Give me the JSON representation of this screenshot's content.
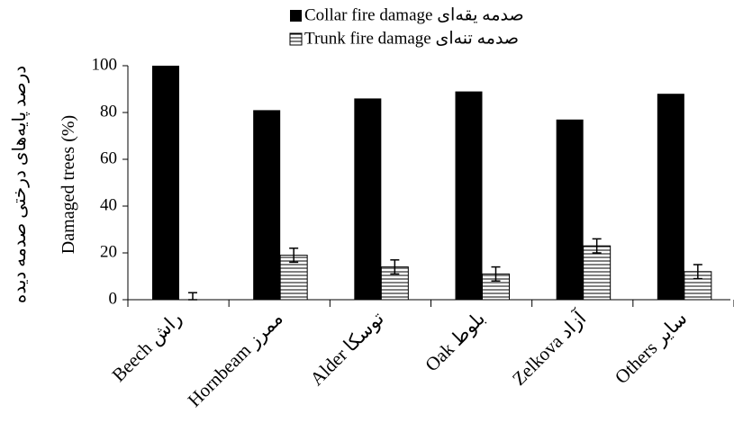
{
  "chart_data": {
    "type": "bar",
    "y_label": [
      "درصد پایه‌های درختی صدمه دیده",
      "Damaged trees (%)"
    ],
    "categories": [
      "Beech راش",
      "Hornbeam ممرز",
      "Alder توسکا",
      "Oak بلوط",
      "Zelkova آزاد",
      "Others سایر"
    ],
    "series": [
      {
        "name": "Collar fire damage صدمه یقه‌ای",
        "color": "#000000",
        "values": [
          100,
          81,
          86,
          89,
          77,
          88
        ]
      },
      {
        "name": "Trunk fire damage صدمه تنه‌ای",
        "color": "#ffffff",
        "hatch": "horizontal",
        "values": [
          0,
          19,
          14,
          11,
          23,
          12
        ],
        "errors": [
          3,
          3,
          3,
          3,
          3,
          3
        ]
      }
    ],
    "ylim": [
      0,
      100
    ],
    "yticks": [
      0,
      20,
      40,
      60,
      80,
      100
    ],
    "legend": "top"
  }
}
